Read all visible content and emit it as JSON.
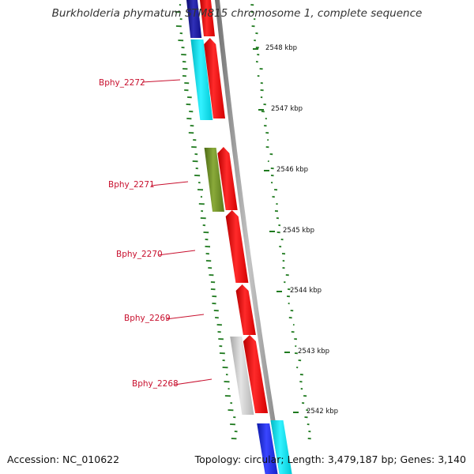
{
  "title": "Burkholderia phymatum STM815 chromosome 1, complete sequence",
  "footer": {
    "accession": "Accession: NC_010622",
    "summary": "Topology: circular; Length: 3,479,187 bp; Genes: 3,140"
  },
  "gene_labels": [
    "Bphy_2272",
    "Bphy_2271",
    "Bphy_2270",
    "Bphy_2269",
    "Bphy_2268"
  ],
  "scale_labels": [
    "2548 kbp",
    "2547 kbp",
    "2546 kbp",
    "2545 kbp",
    "2544 kbp",
    "2543 kbp",
    "2542 kbp"
  ],
  "colors": {
    "label_red": "#c8102e",
    "gene_red": "#ff1a1a",
    "gene_cyan": "#00e5ee",
    "gene_navy": "#1a1a9a",
    "gene_blue": "#1e2bd6",
    "gene_olive": "#6b8e23",
    "gene_gray": "#bdbdbd",
    "gc_dash": "#1f7a1f",
    "backbone": "#8a8a8a"
  }
}
